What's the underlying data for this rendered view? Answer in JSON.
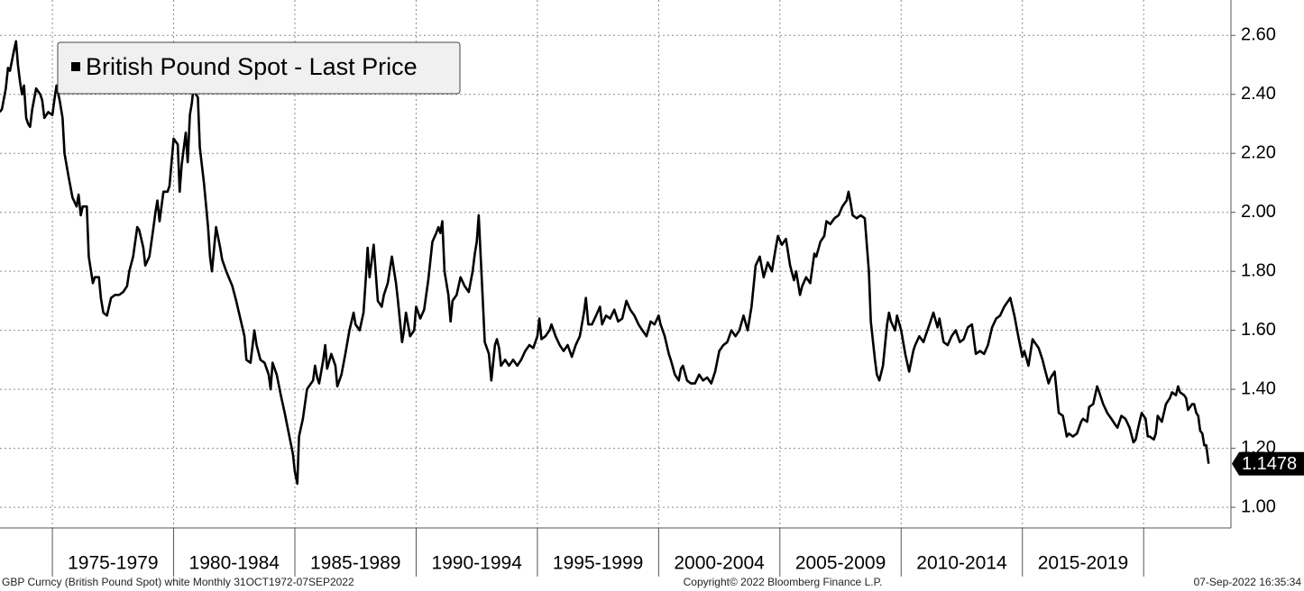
{
  "chart_data": {
    "type": "line",
    "legend": "top-left",
    "grid": true,
    "xlim": [
      1972.84,
      2023.6
    ],
    "ylim": [
      0.93,
      2.72
    ],
    "yticks": [
      {
        "value": 1.0,
        "label": "1.00"
      },
      {
        "value": 1.2,
        "label": "1.20"
      },
      {
        "value": 1.4,
        "label": "1.40"
      },
      {
        "value": 1.6,
        "label": "1.60"
      },
      {
        "value": 1.8,
        "label": "1.80"
      },
      {
        "value": 2.0,
        "label": "2.00"
      },
      {
        "value": 2.2,
        "label": "2.20"
      },
      {
        "value": 2.4,
        "label": "2.40"
      },
      {
        "value": 2.6,
        "label": "2.60"
      }
    ],
    "xticks": [
      1975,
      1980,
      1985,
      1990,
      1995,
      2000,
      2005,
      2010,
      2015,
      2020
    ],
    "period_labels": [
      "1975-1979",
      "1980-1984",
      "1985-1989",
      "1990-1994",
      "1995-1999",
      "2000-2004",
      "2005-2009",
      "2010-2014",
      "2015-2019"
    ],
    "footer_left": "GBP Curncy (British Pound Spot) white  Monthly 31OCT1972-07SEP2022",
    "footer_center": "Copyright© 2022 Bloomberg Finance L.P.",
    "footer_right": "07-Sep-2022 16:35:34",
    "x": [
      1972.83,
      1972.92,
      1973.08,
      1973.17,
      1973.25,
      1973.42,
      1973.5,
      1973.58,
      1973.67,
      1973.75,
      1973.83,
      1973.92,
      1974.0,
      1974.08,
      1974.17,
      1974.33,
      1974.5,
      1974.58,
      1974.67,
      1974.83,
      1975.0,
      1975.08,
      1975.17,
      1975.3,
      1975.42,
      1975.5,
      1975.67,
      1975.83,
      1976.0,
      1976.08,
      1976.17,
      1976.25,
      1976.42,
      1976.5,
      1976.67,
      1976.75,
      1976.92,
      1977.0,
      1977.1,
      1977.25,
      1977.42,
      1977.58,
      1977.75,
      1977.92,
      1978.08,
      1978.17,
      1978.33,
      1978.5,
      1978.58,
      1978.75,
      1978.83,
      1979.0,
      1979.17,
      1979.25,
      1979.33,
      1979.42,
      1979.58,
      1979.75,
      1979.83,
      1980.0,
      1980.17,
      1980.25,
      1980.33,
      1980.5,
      1980.58,
      1980.67,
      1980.75,
      1980.83,
      1980.92,
      1981.0,
      1981.08,
      1981.25,
      1981.42,
      1981.5,
      1981.58,
      1981.75,
      1981.92,
      1982.0,
      1982.17,
      1982.42,
      1982.58,
      1982.75,
      1982.92,
      1983.0,
      1983.17,
      1983.33,
      1983.42,
      1983.58,
      1983.75,
      1983.92,
      1984.0,
      1984.08,
      1984.25,
      1984.42,
      1984.58,
      1984.75,
      1984.92,
      1985.0,
      1985.1,
      1985.17,
      1985.33,
      1985.5,
      1985.58,
      1985.75,
      1985.83,
      1985.92,
      1986.0,
      1986.17,
      1986.25,
      1986.33,
      1986.5,
      1986.67,
      1986.75,
      1986.92,
      1987.08,
      1987.25,
      1987.42,
      1987.5,
      1987.67,
      1987.83,
      1987.92,
      1988.0,
      1988.08,
      1988.25,
      1988.42,
      1988.58,
      1988.67,
      1988.83,
      1989.0,
      1989.17,
      1989.25,
      1989.42,
      1989.5,
      1989.58,
      1989.75,
      1989.92,
      1990.0,
      1990.17,
      1990.33,
      1990.5,
      1990.67,
      1990.83,
      1990.92,
      1991.0,
      1991.08,
      1991.17,
      1991.33,
      1991.42,
      1991.5,
      1991.67,
      1991.83,
      1992.0,
      1992.17,
      1992.33,
      1992.42,
      1992.5,
      1992.58,
      1992.75,
      1992.83,
      1993.0,
      1993.1,
      1993.25,
      1993.33,
      1993.42,
      1993.5,
      1993.67,
      1993.83,
      1994.0,
      1994.17,
      1994.33,
      1994.5,
      1994.67,
      1994.83,
      1995.0,
      1995.08,
      1995.17,
      1995.33,
      1995.5,
      1995.58,
      1995.75,
      1995.92,
      1996.08,
      1996.25,
      1996.42,
      1996.58,
      1996.75,
      1996.92,
      1997.0,
      1997.1,
      1997.25,
      1997.42,
      1997.58,
      1997.67,
      1997.83,
      1998.0,
      1998.17,
      1998.33,
      1998.5,
      1998.67,
      1998.83,
      1999.0,
      1999.17,
      1999.33,
      1999.5,
      1999.67,
      1999.83,
      2000.0,
      2000.08,
      2000.25,
      2000.42,
      2000.5,
      2000.67,
      2000.83,
      2000.92,
      2001.0,
      2001.17,
      2001.33,
      2001.5,
      2001.67,
      2001.83,
      2002.0,
      2002.17,
      2002.33,
      2002.5,
      2002.67,
      2002.83,
      2003.0,
      2003.17,
      2003.33,
      2003.5,
      2003.67,
      2003.83,
      2004.0,
      2004.17,
      2004.33,
      2004.5,
      2004.67,
      2004.83,
      2004.92,
      2005.08,
      2005.25,
      2005.42,
      2005.58,
      2005.67,
      2005.83,
      2005.92,
      2006.08,
      2006.25,
      2006.42,
      2006.5,
      2006.67,
      2006.83,
      2006.92,
      2007.08,
      2007.25,
      2007.42,
      2007.58,
      2007.75,
      2007.83,
      2007.92,
      2008.0,
      2008.17,
      2008.33,
      2008.5,
      2008.67,
      2008.75,
      2008.92,
      2009.0,
      2009.1,
      2009.25,
      2009.42,
      2009.5,
      2009.58,
      2009.75,
      2009.83,
      2010.0,
      2010.17,
      2010.33,
      2010.5,
      2010.58,
      2010.75,
      2010.92,
      2011.0,
      2011.17,
      2011.33,
      2011.5,
      2011.58,
      2011.75,
      2011.92,
      2012.08,
      2012.25,
      2012.42,
      2012.58,
      2012.75,
      2012.92,
      2013.08,
      2013.25,
      2013.42,
      2013.58,
      2013.75,
      2013.92,
      2014.08,
      2014.25,
      2014.42,
      2014.5,
      2014.67,
      2014.83,
      2015.0,
      2015.08,
      2015.25,
      2015.42,
      2015.5,
      2015.67,
      2015.83,
      2015.92,
      2016.08,
      2016.17,
      2016.33,
      2016.5,
      2016.67,
      2016.83,
      2016.92,
      2017.08,
      2017.25,
      2017.42,
      2017.5,
      2017.67,
      2017.75,
      2017.92,
      2018.08,
      2018.17,
      2018.33,
      2018.5,
      2018.67,
      2018.83,
      2018.92,
      2019.08,
      2019.25,
      2019.42,
      2019.58,
      2019.67,
      2019.83,
      2019.92,
      2020.08,
      2020.17,
      2020.25,
      2020.42,
      2020.5,
      2020.58,
      2020.75,
      2020.92,
      2021.08,
      2021.17,
      2021.33,
      2021.42,
      2021.5,
      2021.67,
      2021.75,
      2021.83,
      2022.0,
      2022.08,
      2022.17,
      2022.25,
      2022.33,
      2022.42,
      2022.5,
      2022.58,
      2022.68
    ],
    "series": [
      {
        "name": "British Pound Spot - Last Price",
        "color": "#000000",
        "values": [
          2.34,
          2.35,
          2.42,
          2.49,
          2.48,
          2.55,
          2.58,
          2.5,
          2.44,
          2.4,
          2.43,
          2.32,
          2.3,
          2.29,
          2.35,
          2.42,
          2.4,
          2.38,
          2.32,
          2.34,
          2.33,
          2.38,
          2.43,
          2.38,
          2.32,
          2.2,
          2.12,
          2.05,
          2.02,
          2.06,
          1.99,
          2.02,
          2.02,
          1.85,
          1.76,
          1.78,
          1.78,
          1.71,
          1.66,
          1.65,
          1.71,
          1.72,
          1.72,
          1.73,
          1.75,
          1.8,
          1.85,
          1.95,
          1.94,
          1.88,
          1.82,
          1.85,
          1.95,
          2.0,
          2.04,
          1.97,
          2.07,
          2.07,
          2.09,
          2.25,
          2.23,
          2.07,
          2.16,
          2.27,
          2.17,
          2.33,
          2.37,
          2.43,
          2.4,
          2.39,
          2.22,
          2.1,
          1.95,
          1.85,
          1.8,
          1.95,
          1.88,
          1.84,
          1.8,
          1.75,
          1.7,
          1.64,
          1.58,
          1.5,
          1.49,
          1.6,
          1.55,
          1.5,
          1.49,
          1.45,
          1.4,
          1.49,
          1.45,
          1.38,
          1.32,
          1.25,
          1.18,
          1.12,
          1.08,
          1.24,
          1.3,
          1.4,
          1.41,
          1.43,
          1.48,
          1.44,
          1.42,
          1.5,
          1.55,
          1.47,
          1.52,
          1.48,
          1.41,
          1.45,
          1.52,
          1.6,
          1.66,
          1.62,
          1.6,
          1.66,
          1.77,
          1.88,
          1.78,
          1.89,
          1.7,
          1.68,
          1.72,
          1.76,
          1.85,
          1.76,
          1.7,
          1.56,
          1.6,
          1.66,
          1.58,
          1.6,
          1.68,
          1.64,
          1.67,
          1.77,
          1.9,
          1.93,
          1.95,
          1.93,
          1.97,
          1.8,
          1.72,
          1.63,
          1.7,
          1.72,
          1.78,
          1.75,
          1.73,
          1.8,
          1.86,
          1.9,
          1.99,
          1.7,
          1.56,
          1.52,
          1.43,
          1.55,
          1.57,
          1.54,
          1.48,
          1.5,
          1.48,
          1.5,
          1.48,
          1.5,
          1.53,
          1.55,
          1.54,
          1.58,
          1.64,
          1.57,
          1.58,
          1.6,
          1.62,
          1.58,
          1.55,
          1.53,
          1.55,
          1.51,
          1.55,
          1.58,
          1.66,
          1.71,
          1.62,
          1.62,
          1.65,
          1.68,
          1.62,
          1.65,
          1.64,
          1.67,
          1.63,
          1.64,
          1.7,
          1.67,
          1.65,
          1.62,
          1.6,
          1.58,
          1.63,
          1.62,
          1.65,
          1.62,
          1.58,
          1.52,
          1.5,
          1.45,
          1.43,
          1.47,
          1.48,
          1.43,
          1.42,
          1.42,
          1.45,
          1.43,
          1.44,
          1.42,
          1.46,
          1.53,
          1.55,
          1.56,
          1.6,
          1.58,
          1.6,
          1.65,
          1.6,
          1.68,
          1.82,
          1.85,
          1.78,
          1.83,
          1.8,
          1.88,
          1.92,
          1.89,
          1.91,
          1.82,
          1.77,
          1.8,
          1.72,
          1.75,
          1.78,
          1.76,
          1.86,
          1.85,
          1.9,
          1.92,
          1.97,
          1.96,
          1.98,
          1.99,
          2.02,
          2.04,
          2.07,
          2.03,
          1.99,
          1.98,
          1.99,
          1.98,
          1.8,
          1.63,
          1.5,
          1.45,
          1.43,
          1.48,
          1.62,
          1.66,
          1.63,
          1.6,
          1.65,
          1.6,
          1.52,
          1.46,
          1.53,
          1.55,
          1.58,
          1.56,
          1.58,
          1.62,
          1.66,
          1.61,
          1.64,
          1.56,
          1.55,
          1.58,
          1.6,
          1.56,
          1.57,
          1.61,
          1.62,
          1.52,
          1.53,
          1.52,
          1.55,
          1.61,
          1.64,
          1.65,
          1.68,
          1.7,
          1.71,
          1.65,
          1.58,
          1.51,
          1.53,
          1.48,
          1.57,
          1.56,
          1.54,
          1.5,
          1.47,
          1.42,
          1.44,
          1.46,
          1.32,
          1.31,
          1.24,
          1.25,
          1.24,
          1.25,
          1.29,
          1.3,
          1.29,
          1.34,
          1.35,
          1.41,
          1.39,
          1.35,
          1.32,
          1.3,
          1.28,
          1.27,
          1.31,
          1.3,
          1.27,
          1.22,
          1.23,
          1.29,
          1.32,
          1.3,
          1.24,
          1.24,
          1.23,
          1.25,
          1.31,
          1.29,
          1.35,
          1.37,
          1.39,
          1.38,
          1.41,
          1.39,
          1.38,
          1.37,
          1.33,
          1.35,
          1.35,
          1.32,
          1.31,
          1.26,
          1.25,
          1.21,
          1.21,
          1.1478
        ]
      }
    ]
  }
}
